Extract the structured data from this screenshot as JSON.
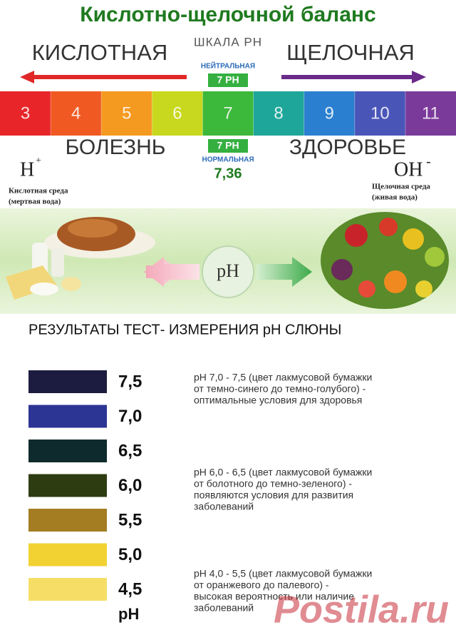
{
  "header": {
    "title": "Кислотно-щелочной баланс",
    "scale_label": "ШКАЛА PH",
    "left_label": "КИСЛОТНАЯ",
    "right_label": "ЩЕЛОЧНАЯ",
    "neutral_label": "НЕЙТРАЛЬНАЯ",
    "neutral_ph": "7 PH"
  },
  "scale": {
    "cells": [
      {
        "label": "3",
        "color": "#e8262a"
      },
      {
        "label": "4",
        "color": "#f05a22"
      },
      {
        "label": "5",
        "color": "#f59a20"
      },
      {
        "label": "6",
        "color": "#c8d81e"
      },
      {
        "label": "7",
        "color": "#3cb83a"
      },
      {
        "label": "8",
        "color": "#1fa69a"
      },
      {
        "label": "9",
        "color": "#2a7fd0"
      },
      {
        "label": "10",
        "color": "#4a55b8"
      },
      {
        "label": "11",
        "color": "#7a3a9a"
      }
    ]
  },
  "lower": {
    "disease": "БОЛЕЗНЬ",
    "health": "ЗДОРОВЬЕ",
    "normal_ph": "7 PH",
    "normal_label": "НОРМАЛЬНАЯ",
    "normal_value": "7,36",
    "h_ion": "H",
    "h_sign": "+",
    "oh_ion": "OH",
    "oh_sign": "-",
    "left_note": [
      "Кислотная среда",
      "(мертвая вода)"
    ],
    "right_note": [
      "Щелочная среда",
      "(живая вода)"
    ]
  },
  "banner": {
    "ph": "pH"
  },
  "results": {
    "title": "РЕЗУЛЬТАТЫ ТЕСТ- ИЗМЕРЕНИЯ  pH СЛЮНЫ",
    "swatches": [
      {
        "label": "7,5",
        "color": "#1c1c40"
      },
      {
        "label": "7,0",
        "color": "#2c3494"
      },
      {
        "label": "6,5",
        "color": "#0f2a2c"
      },
      {
        "label": "6,0",
        "color": "#2e3c12"
      },
      {
        "label": "5,5",
        "color": "#a47c22"
      },
      {
        "label": "5,0",
        "color": "#f2d232"
      },
      {
        "label": "4,5",
        "color": "#f6de66"
      }
    ],
    "unit": "pH",
    "notes": [
      [
        "pH 7,0 - 7,5 (цвет лакмусовой бумажки",
        "от темно-синего до темно-голубого) -",
        "оптимальные условия для здоровья"
      ],
      [
        "pH 6,0 - 6,5 (цвет лакмусовой бумажки",
        "от болотного до темно-зеленого) -",
        "появляются условия для развития",
        "заболеваний"
      ],
      [
        "pH 4,0 - 5,5 (цвет лакмусовой бумажки",
        "от оранжевого до палевого) -",
        "высокая вероятность или наличие",
        "заболеваний"
      ]
    ]
  },
  "watermark": "Postila.ru"
}
